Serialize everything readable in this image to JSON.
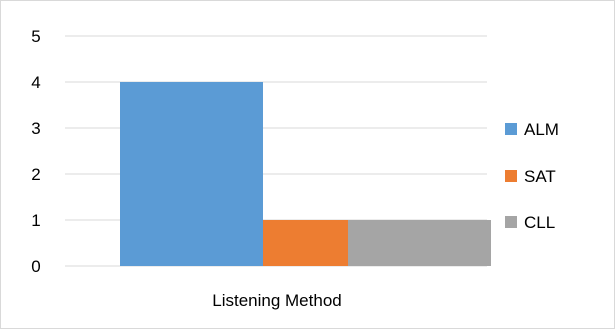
{
  "chart_data": {
    "type": "bar",
    "categories": [
      "Listening Method"
    ],
    "series": [
      {
        "name": "ALM",
        "values": [
          4
        ],
        "color": "#5b9bd5"
      },
      {
        "name": "SAT",
        "values": [
          1
        ],
        "color": "#ed7d31"
      },
      {
        "name": "CLL",
        "values": [
          1
        ],
        "color": "#a5a5a5"
      }
    ],
    "title": "",
    "xlabel": "",
    "ylabel": "",
    "ylim": [
      0,
      5
    ],
    "yticks": [
      "0",
      "1",
      "2",
      "3",
      "4",
      "5"
    ],
    "grid": true,
    "legend": "right",
    "gridline_color": "#d9d9d9"
  }
}
